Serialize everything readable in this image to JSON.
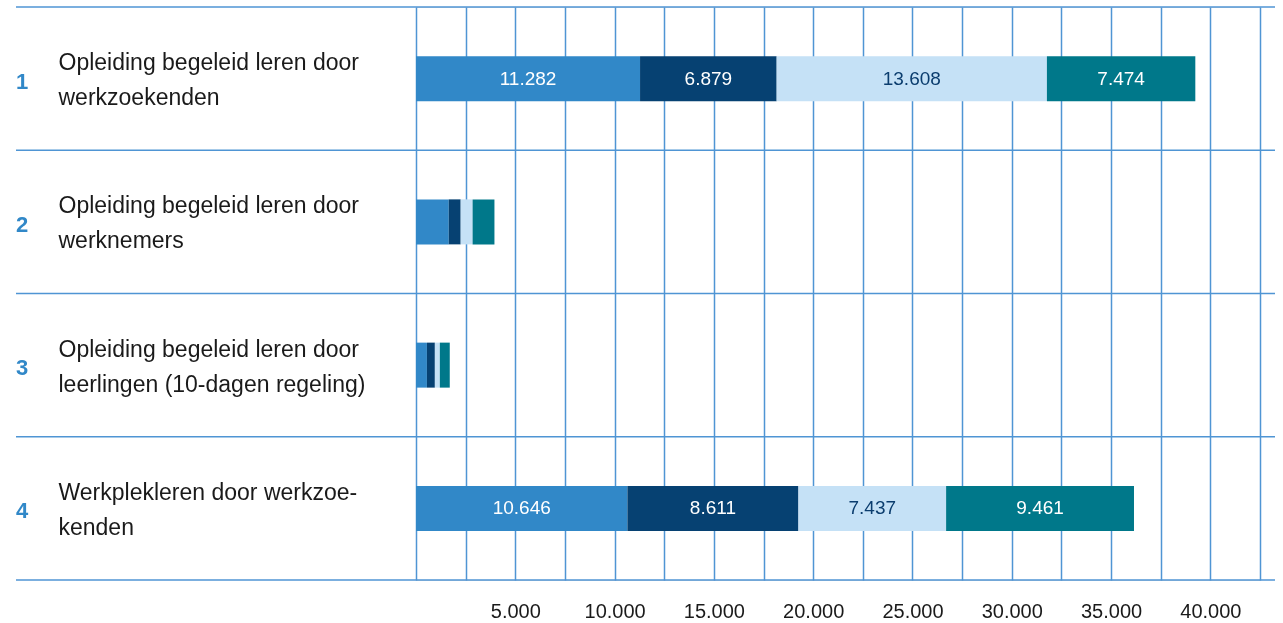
{
  "chart_data": {
    "type": "bar",
    "orientation": "horizontal",
    "stacked": true,
    "categories": [
      "Opleiding begeleid leren door\nwerkzoekenden",
      "Opleiding begeleid leren door\nwerknemers",
      "Opleiding begeleid leren door\nleerlingen (10-dagen regeling)",
      "Werkplekleren door werkzoe-\nkenden"
    ],
    "y2_categories": [
      "1",
      "2",
      "3",
      "4"
    ],
    "series": [
      {
        "color": "#3188c8",
        "values": [
          11282,
          1650,
          550,
          10646
        ],
        "value_labels": [
          "11.282",
          null,
          null,
          "10.646"
        ]
      },
      {
        "color": "#064172",
        "values": [
          6879,
          600,
          400,
          8611
        ],
        "value_labels": [
          "6.879",
          null,
          null,
          "8.611"
        ]
      },
      {
        "color": "#c5e1f6",
        "values": [
          13608,
          600,
          250,
          7437
        ],
        "value_labels": [
          "13.608",
          null,
          null,
          "7.437"
        ]
      },
      {
        "color": "#00788a",
        "values": [
          7474,
          1100,
          500,
          9461
        ],
        "value_labels": [
          "7.474",
          null,
          null,
          "9.461"
        ]
      }
    ],
    "xlim": [
      0,
      42500
    ],
    "xticks": [
      {
        "value": 0,
        "label": null
      },
      {
        "value": 2500,
        "label": null
      },
      {
        "value": 5000,
        "label": "5.000"
      },
      {
        "value": 7500,
        "label": null
      },
      {
        "value": 10000,
        "label": "10.000"
      },
      {
        "value": 12500,
        "label": null
      },
      {
        "value": 15000,
        "label": "15.000"
      },
      {
        "value": 17500,
        "label": null
      },
      {
        "value": 20000,
        "label": "20.000"
      },
      {
        "value": 22500,
        "label": null
      },
      {
        "value": 25000,
        "label": "25.000"
      },
      {
        "value": 27500,
        "label": null
      },
      {
        "value": 30000,
        "label": "30.000"
      },
      {
        "value": 32500,
        "label": null
      },
      {
        "value": 35000,
        "label": "35.000"
      },
      {
        "value": 37500,
        "label": null
      },
      {
        "value": 40000,
        "label": "40.000"
      },
      {
        "value": 42500,
        "label": null
      }
    ],
    "grid": true
  }
}
